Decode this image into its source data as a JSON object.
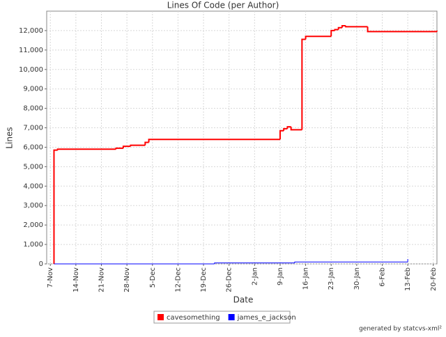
{
  "chart_data": {
    "type": "step-line",
    "title": "Lines Of Code (per Author)",
    "x_label": "Date",
    "y_label": "Lines",
    "xlim": [
      "6-Nov",
      "21-Feb"
    ],
    "xticks": [
      "7-Nov",
      "14-Nov",
      "21-Nov",
      "28-Nov",
      "5-Dec",
      "12-Dec",
      "19-Dec",
      "26-Dec",
      "2-Jan",
      "9-Jan",
      "16-Jan",
      "23-Jan",
      "30-Jan",
      "6-Feb",
      "13-Feb",
      "20-Feb"
    ],
    "ylim": [
      0,
      13000
    ],
    "yticks": [
      0,
      {
        "value": 1000,
        "label": "1,000"
      },
      {
        "value": 2000,
        "label": "2,000"
      },
      {
        "value": 3000,
        "label": "3,000"
      },
      {
        "value": 4000,
        "label": "4,000"
      },
      {
        "value": 5000,
        "label": "5,000"
      },
      {
        "value": 6000,
        "label": "6,000"
      },
      {
        "value": 7000,
        "label": "7,000"
      },
      {
        "value": 8000,
        "label": "8,000"
      },
      {
        "value": 9000,
        "label": "9,000"
      },
      {
        "value": 10000,
        "label": "10,000"
      },
      {
        "value": 11000,
        "label": "11,000"
      },
      {
        "value": 12000,
        "label": "12,000"
      }
    ],
    "grid": true,
    "series": [
      {
        "name": "cavesomething",
        "color": "#ff0000",
        "x": [
          "8-Nov",
          "8-Nov",
          "9-Nov",
          "25-Nov",
          "27-Nov",
          "29-Nov",
          "3-Dec",
          "4-Dec",
          "9-Jan",
          "10-Jan",
          "11-Jan",
          "12-Jan",
          "15-Jan",
          "16-Jan",
          "23-Jan",
          "24-Jan",
          "25-Jan",
          "26-Jan",
          "27-Jan",
          "2-Feb",
          "21-Feb"
        ],
        "values": [
          0,
          5850,
          5900,
          5950,
          6050,
          6100,
          6250,
          6400,
          6850,
          6950,
          7050,
          6900,
          11550,
          11700,
          12000,
          12050,
          12150,
          12250,
          12200,
          11950,
          12000
        ]
      },
      {
        "name": "james_e_jackson",
        "color": "#0000ff",
        "x": [
          "8-Nov",
          "22-Dec",
          "13-Jan",
          "13-Feb"
        ],
        "values": [
          0,
          50,
          100,
          250
        ]
      }
    ],
    "footer": "generated by statcvs-xml²"
  }
}
